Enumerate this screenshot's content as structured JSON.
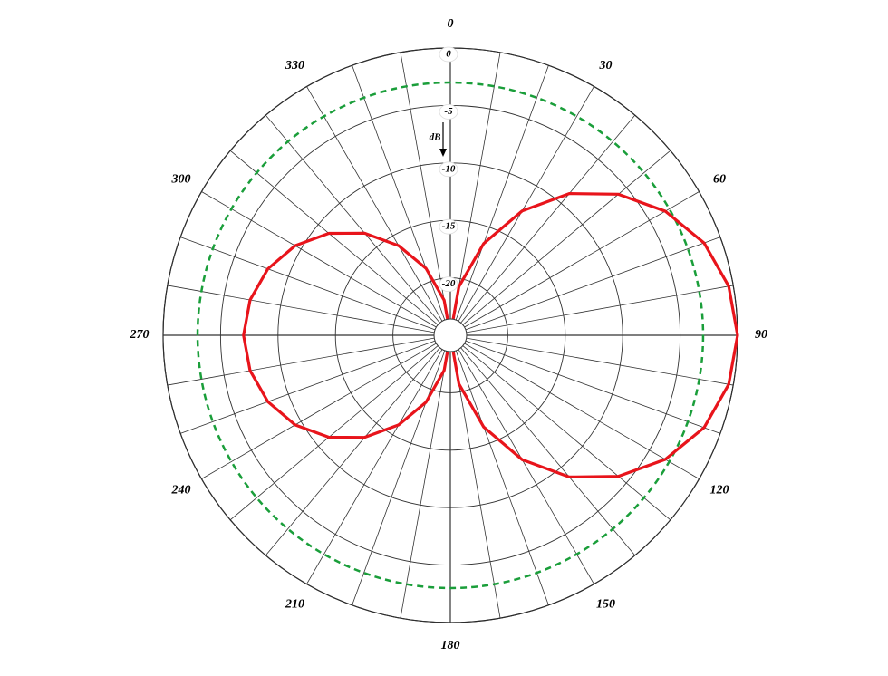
{
  "chart_data": {
    "type": "polar",
    "r_unit": "dB",
    "rlim": [
      -25,
      0
    ],
    "rticks": [
      0,
      -5,
      -10,
      -15,
      -20
    ],
    "thetaticks": [
      0,
      30,
      60,
      90,
      120,
      150,
      180,
      210,
      240,
      270,
      300,
      330
    ],
    "theta_grid_step": 10,
    "reference_circle": {
      "value": -3,
      "color": "#1a9e3a"
    },
    "theta": [
      0,
      10,
      20,
      30,
      40,
      50,
      60,
      70,
      80,
      90,
      100,
      110,
      120,
      130,
      140,
      150,
      160,
      170,
      180,
      190,
      200,
      210,
      220,
      230,
      240,
      250,
      260,
      270,
      280,
      290,
      300,
      310,
      320,
      330,
      340,
      350
    ],
    "series": [
      {
        "color": "#e8141b",
        "values": [
          -25,
          -20.7,
          -16.5,
          -12.5,
          -8.9,
          -5.9,
          -3.4,
          -1.5,
          -0.4,
          0,
          -0.4,
          -1.5,
          -3.4,
          -5.9,
          -8.9,
          -12.5,
          -16.5,
          -20.7,
          -25,
          -21.9,
          -18.8,
          -16,
          -13.4,
          -11.2,
          -9.4,
          -8.1,
          -7.3,
          -7,
          -7.3,
          -8.1,
          -9.4,
          -11.2,
          -13.4,
          -16,
          -18.8,
          -21.9
        ]
      }
    ]
  }
}
